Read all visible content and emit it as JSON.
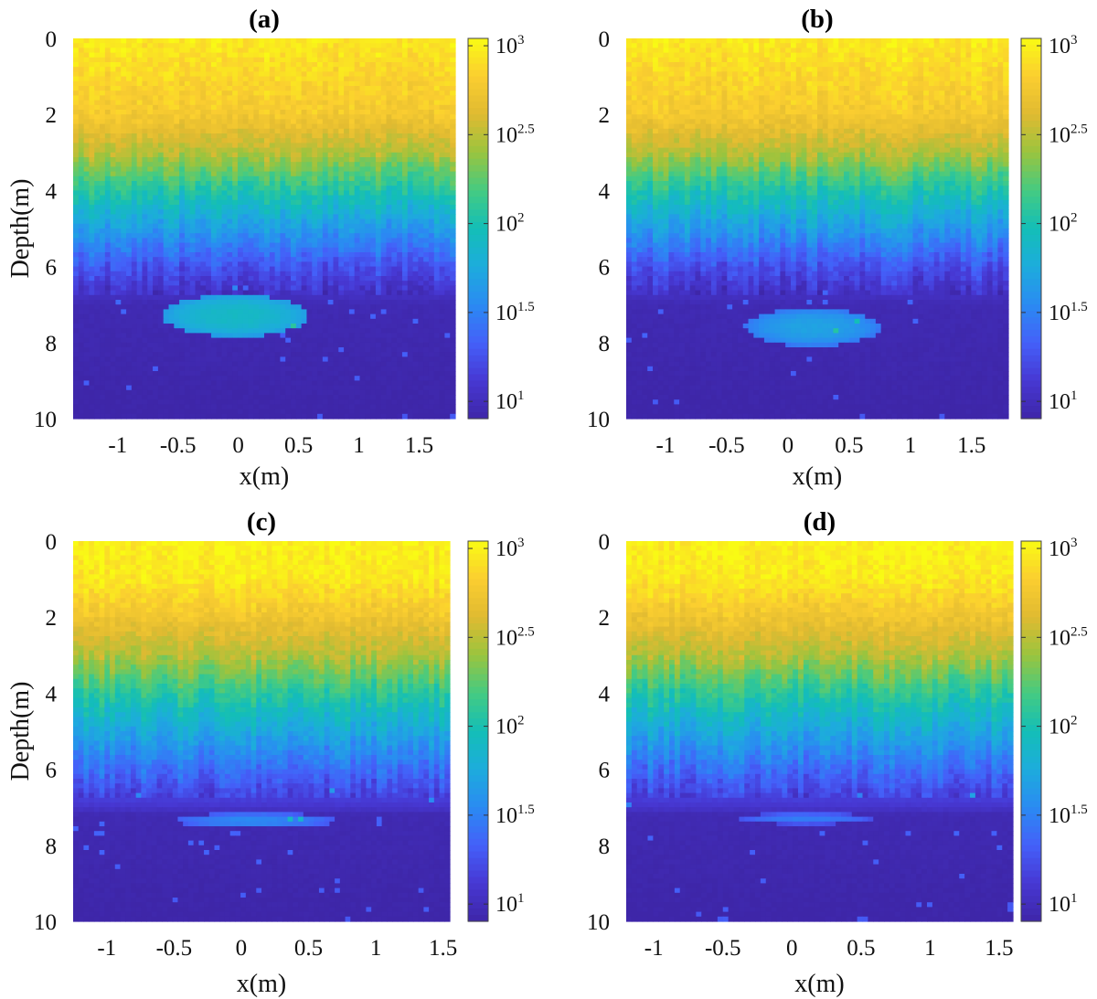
{
  "chart_data": [
    {
      "type": "heatmap",
      "title": "(a)",
      "xlabel": "x(m)",
      "ylabel": "Depth(m)",
      "xlim": [
        -1.37,
        1.8
      ],
      "ylim": [
        10,
        0
      ],
      "x_ticks": [
        -1,
        -0.5,
        0,
        0.5,
        1,
        1.5
      ],
      "y_ticks": [
        0,
        2,
        4,
        6,
        8,
        10
      ],
      "colorbar": {
        "scale": "log",
        "range": [
          8,
          1100
        ],
        "ticks": [
          {
            "base": "10",
            "exp": "1"
          },
          {
            "base": "10",
            "exp": "1.5"
          },
          {
            "base": "10",
            "exp": "2"
          },
          {
            "base": "10",
            "exp": "2.5"
          },
          {
            "base": "10",
            "exp": "3"
          }
        ]
      },
      "grid": false,
      "background_profile": [
        {
          "depth": 0,
          "value": 900
        },
        {
          "depth": 2,
          "value": 600
        },
        {
          "depth": 3,
          "value": 300
        },
        {
          "depth": 4,
          "value": 110
        },
        {
          "depth": 5,
          "value": 45
        },
        {
          "depth": 6,
          "value": 18
        },
        {
          "depth": 7,
          "value": 9
        },
        {
          "depth": 10,
          "value": 8
        }
      ],
      "anomaly": {
        "x_center": -0.02,
        "depth_center": 7.3,
        "x_half_width": 0.6,
        "depth_half_width": 0.55,
        "peak_value": 80
      }
    },
    {
      "type": "heatmap",
      "title": "(b)",
      "xlabel": "x(m)",
      "ylabel": "",
      "xlim": [
        -1.32,
        1.8
      ],
      "ylim": [
        10,
        0
      ],
      "x_ticks": [
        -1,
        -0.5,
        0,
        0.5,
        1,
        1.5
      ],
      "y_ticks": [
        0,
        2,
        4,
        6,
        8,
        10
      ],
      "colorbar": {
        "scale": "log",
        "range": [
          8,
          1100
        ],
        "ticks": [
          {
            "base": "10",
            "exp": "1"
          },
          {
            "base": "10",
            "exp": "1.5"
          },
          {
            "base": "10",
            "exp": "2"
          },
          {
            "base": "10",
            "exp": "2.5"
          },
          {
            "base": "10",
            "exp": "3"
          }
        ]
      },
      "grid": false,
      "background_profile": [
        {
          "depth": 0,
          "value": 900
        },
        {
          "depth": 2,
          "value": 600
        },
        {
          "depth": 3,
          "value": 300
        },
        {
          "depth": 4,
          "value": 110
        },
        {
          "depth": 5,
          "value": 45
        },
        {
          "depth": 6,
          "value": 18
        },
        {
          "depth": 7,
          "value": 9
        },
        {
          "depth": 10,
          "value": 8
        }
      ],
      "anomaly": {
        "x_center": 0.2,
        "depth_center": 7.6,
        "x_half_width": 0.55,
        "depth_half_width": 0.5,
        "peak_value": 50
      }
    },
    {
      "type": "heatmap",
      "title": "(c)",
      "xlabel": "x(m)",
      "ylabel": "Depth(m)",
      "xlim": [
        -1.25,
        1.55
      ],
      "ylim": [
        10,
        0
      ],
      "x_ticks": [
        -1,
        -0.5,
        0,
        0.5,
        1,
        1.5
      ],
      "y_ticks": [
        0,
        2,
        4,
        6,
        8,
        10
      ],
      "colorbar": {
        "scale": "log",
        "range": [
          8,
          1100
        ],
        "ticks": [
          {
            "base": "10",
            "exp": "1"
          },
          {
            "base": "10",
            "exp": "1.5"
          },
          {
            "base": "10",
            "exp": "2"
          },
          {
            "base": "10",
            "exp": "2.5"
          },
          {
            "base": "10",
            "exp": "3"
          }
        ]
      },
      "grid": false,
      "background_profile": [
        {
          "depth": 0,
          "value": 1000
        },
        {
          "depth": 1,
          "value": 900
        },
        {
          "depth": 2,
          "value": 550
        },
        {
          "depth": 3,
          "value": 300
        },
        {
          "depth": 4,
          "value": 120
        },
        {
          "depth": 5,
          "value": 55
        },
        {
          "depth": 6,
          "value": 25
        },
        {
          "depth": 7,
          "value": 12
        },
        {
          "depth": 7.2,
          "value": 9
        },
        {
          "depth": 10,
          "value": 8
        }
      ],
      "anomaly": {
        "x_center": 0.1,
        "depth_center": 7.35,
        "x_half_width": 0.6,
        "depth_half_width": 0.2,
        "peak_value": 35
      }
    },
    {
      "type": "heatmap",
      "title": "(d)",
      "xlabel": "x(m)",
      "ylabel": "",
      "xlim": [
        -1.2,
        1.6
      ],
      "ylim": [
        10,
        0
      ],
      "x_ticks": [
        -1,
        -0.5,
        0,
        0.5,
        1,
        1.5
      ],
      "y_ticks": [
        0,
        2,
        4,
        6,
        8,
        10
      ],
      "colorbar": {
        "scale": "log",
        "range": [
          8,
          1100
        ],
        "ticks": [
          {
            "base": "10",
            "exp": "1"
          },
          {
            "base": "10",
            "exp": "1.5"
          },
          {
            "base": "10",
            "exp": "2"
          },
          {
            "base": "10",
            "exp": "2.5"
          },
          {
            "base": "10",
            "exp": "3"
          }
        ]
      },
      "grid": false,
      "background_profile": [
        {
          "depth": 0,
          "value": 1000
        },
        {
          "depth": 1,
          "value": 900
        },
        {
          "depth": 2,
          "value": 550
        },
        {
          "depth": 3,
          "value": 300
        },
        {
          "depth": 4,
          "value": 120
        },
        {
          "depth": 5,
          "value": 55
        },
        {
          "depth": 6,
          "value": 25
        },
        {
          "depth": 7,
          "value": 12
        },
        {
          "depth": 7.2,
          "value": 9
        },
        {
          "depth": 10,
          "value": 8
        }
      ],
      "anomaly": {
        "x_center": 0.1,
        "depth_center": 7.3,
        "x_half_width": 0.5,
        "depth_half_width": 0.15,
        "peak_value": 30
      }
    }
  ]
}
